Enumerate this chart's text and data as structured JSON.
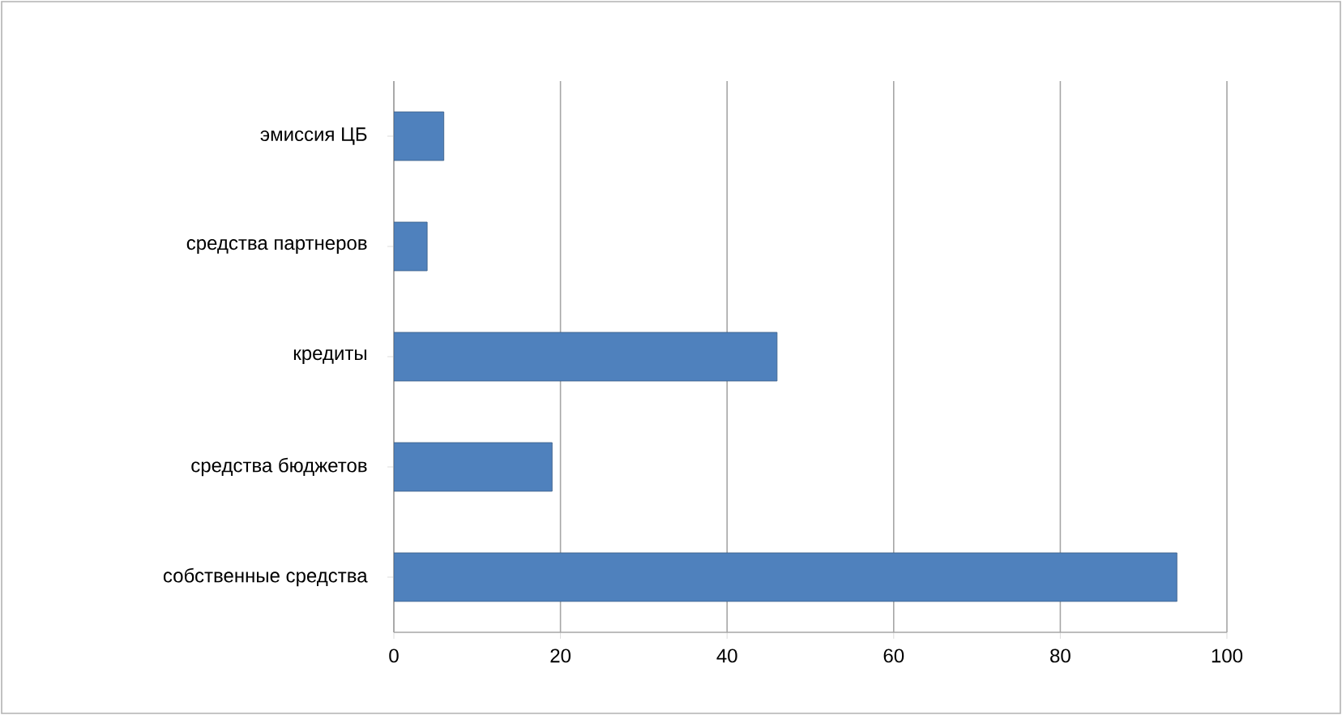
{
  "chart_data": {
    "type": "bar",
    "orientation": "horizontal",
    "categories": [
      "эмиссия ЦБ",
      "средства партнеров",
      "кредиты",
      "средства бюджетов",
      "собственные средства"
    ],
    "values": [
      6,
      4,
      46,
      19,
      94
    ],
    "color": "#4f81bd",
    "xlim": [
      0,
      100
    ],
    "xticks": [
      0,
      20,
      40,
      60,
      80,
      100
    ],
    "grid": "x"
  }
}
